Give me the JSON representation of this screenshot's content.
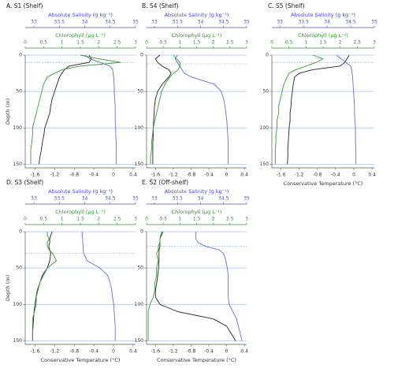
{
  "chart_data": [
    {
      "type": "line",
      "title": "A. S1 (Shelf)",
      "ylabel": "Depth (m)",
      "x2label": "Absolute Salinity (g kg⁻¹)",
      "x3label": "Chlorophyll (µg L⁻¹)",
      "depth": [
        0,
        5,
        10,
        15,
        20,
        25,
        30,
        40,
        50,
        60,
        70,
        80,
        90,
        100,
        110,
        120,
        130,
        140,
        150
      ],
      "ylim": [
        155,
        0
      ],
      "yticks": [
        0,
        50,
        100,
        150
      ],
      "grid": true,
      "mld": 10,
      "xlim": [
        -1.8,
        0.45
      ],
      "xticks": [
        -1.6,
        -1.2,
        -0.8,
        -0.4,
        0,
        0.4
      ],
      "x2lim": [
        32.83,
        35
      ],
      "x2ticks": [
        33,
        33.5,
        34,
        34.5,
        35
      ],
      "x3lim": [
        0,
        3
      ],
      "x3ticks": [
        0,
        0.5,
        1,
        1.5,
        2,
        2.5,
        3
      ],
      "series": [
        {
          "color": "#222222",
          "axis": "x",
          "values": [
            -0.5,
            -0.45,
            -0.5,
            -0.9,
            -1.0,
            -1.05,
            -1.1,
            -1.15,
            -1.2,
            -1.25,
            -1.28,
            -1.3,
            -1.35,
            -1.4,
            -1.42,
            -1.45,
            -1.47,
            -1.5,
            -1.52
          ]
        },
        {
          "color": "#6b6bd6",
          "axis": "x2",
          "values": [
            34.0,
            34.1,
            34.3,
            34.5,
            34.55,
            34.56,
            34.57,
            34.58,
            34.58,
            34.59,
            34.6,
            34.6,
            34.6,
            34.61,
            34.61,
            34.62,
            34.62,
            34.62,
            34.62
          ]
        },
        {
          "color": "#3a9a3a",
          "axis": "x3",
          "values": [
            1.5,
            2.0,
            2.6,
            1.5,
            1.0,
            0.8,
            0.6,
            0.5,
            0.45,
            0.4,
            0.35,
            0.3,
            0.25,
            0.2,
            0.2,
            0.18,
            0.15,
            0.15,
            0.15
          ]
        }
      ]
    },
    {
      "type": "line",
      "title": "B. S4 (Shelf)",
      "x2label": "Absolute Salinity (g kg⁻¹)",
      "x3label": "Chlorophyll (µg L⁻¹)",
      "depth": [
        0,
        5,
        10,
        15,
        20,
        25,
        30,
        40,
        50,
        60,
        70,
        80,
        90,
        100,
        110,
        120,
        130,
        140,
        150
      ],
      "ylim": [
        155,
        0
      ],
      "yticks": [
        0,
        50,
        100,
        150
      ],
      "grid": true,
      "mld": 12,
      "xlim": [
        -1.8,
        0.45
      ],
      "xticks": [
        -1.6,
        -1.2,
        -0.8,
        -0.4,
        0,
        0.4
      ],
      "x2lim": [
        32.83,
        35
      ],
      "x2ticks": [
        33,
        33.5,
        34,
        34.5,
        35
      ],
      "x3lim": [
        0,
        3
      ],
      "x3ticks": [
        0,
        0.5,
        1,
        1.5,
        2,
        2.5,
        3
      ],
      "series": [
        {
          "color": "#222222",
          "axis": "x",
          "values": [
            -1.5,
            -1.6,
            -1.55,
            -1.45,
            -1.3,
            -1.25,
            -1.3,
            -1.45,
            -1.55,
            -1.6,
            -1.62,
            -1.63,
            -1.64,
            -1.65,
            -1.65,
            -1.66,
            -1.66,
            -1.66,
            -1.66
          ]
        },
        {
          "color": "#6b6bd6",
          "axis": "x2",
          "values": [
            33.5,
            33.45,
            33.5,
            33.55,
            33.6,
            33.65,
            33.8,
            34.3,
            34.45,
            34.5,
            34.53,
            34.55,
            34.57,
            34.58,
            34.59,
            34.6,
            34.6,
            34.6,
            34.6
          ]
        },
        {
          "color": "#3a9a3a",
          "axis": "x3",
          "values": [
            0.8,
            0.9,
            1.0,
            1.0,
            0.95,
            0.8,
            0.7,
            0.55,
            0.45,
            0.4,
            0.35,
            0.3,
            0.25,
            0.2,
            0.18,
            0.15,
            0.15,
            0.12,
            0.12
          ]
        }
      ]
    },
    {
      "type": "line",
      "title": "C. S5 (Shelf)",
      "xlabel": "Conservative Temperature (°C)",
      "x2label": "Absolute Salinity (g kg⁻¹)",
      "x3label": "Chlorophyll (µg L⁻¹)",
      "depth": [
        0,
        5,
        10,
        15,
        20,
        25,
        30,
        40,
        50,
        60,
        70,
        80,
        90,
        100,
        110,
        120,
        130,
        140,
        150
      ],
      "ylim": [
        155,
        0
      ],
      "yticks": [
        0,
        50,
        100,
        150
      ],
      "grid": true,
      "mld": 10,
      "xlim": [
        -1.8,
        0.45
      ],
      "xticks": [
        -1.6,
        -1.2,
        -0.8,
        -0.4,
        0,
        0.4
      ],
      "x2lim": [
        32.83,
        35
      ],
      "x2ticks": [
        33,
        33.5,
        34,
        34.5,
        35
      ],
      "x3lim": [
        0,
        3
      ],
      "x3ticks": [
        0,
        0.5,
        1,
        1.5,
        2,
        2.5,
        3
      ],
      "series": [
        {
          "color": "#222222",
          "axis": "x",
          "values": [
            -0.1,
            -0.15,
            -0.2,
            -0.3,
            -0.9,
            -1.2,
            -1.3,
            -1.33,
            -1.35,
            -1.37,
            -1.38,
            -1.4,
            -1.4,
            -1.42,
            -1.43,
            -1.44,
            -1.45,
            -1.45,
            -1.46
          ]
        },
        {
          "color": "#6b6bd6",
          "axis": "x2",
          "values": [
            34.2,
            34.3,
            34.4,
            34.5,
            34.52,
            34.53,
            34.54,
            34.55,
            34.56,
            34.57,
            34.58,
            34.58,
            34.59,
            34.6,
            34.6,
            34.6,
            34.61,
            34.61,
            34.61
          ]
        },
        {
          "color": "#3a9a3a",
          "axis": "x3",
          "values": [
            1.2,
            1.5,
            1.3,
            1.0,
            0.7,
            0.5,
            0.45,
            0.35,
            0.3,
            0.25,
            0.2,
            0.2,
            0.15,
            0.15,
            0.12,
            0.12,
            0.1,
            0.1,
            0.1
          ]
        }
      ]
    },
    {
      "type": "line",
      "title": "D. S3 (Shelf)",
      "ylabel": "Depth (m)",
      "xlabel": "Conservative Temperature (°C)",
      "x2label": "Absolute Salinity (g kg⁻¹)",
      "x3label": "Chlorophyll (µg L⁻¹)",
      "depth": [
        0,
        5,
        10,
        15,
        20,
        25,
        30,
        40,
        50,
        60,
        70,
        80,
        90,
        100,
        110,
        120,
        130,
        140,
        150
      ],
      "ylim": [
        155,
        0
      ],
      "yticks": [
        0,
        50,
        100,
        150
      ],
      "grid": true,
      "mld": 30,
      "xlim": [
        -1.8,
        0.45
      ],
      "xticks": [
        -1.6,
        -1.2,
        -0.8,
        -0.4,
        0,
        0.4
      ],
      "x2lim": [
        32.83,
        35
      ],
      "x2ticks": [
        33,
        33.5,
        34,
        34.5,
        35
      ],
      "x3lim": [
        0,
        3
      ],
      "x3ticks": [
        0,
        0.5,
        1,
        1.5,
        2,
        2.5,
        3
      ],
      "series": [
        {
          "color": "#222222",
          "axis": "x",
          "values": [
            -1.25,
            -1.28,
            -1.3,
            -1.3,
            -1.32,
            -1.3,
            -1.28,
            -1.3,
            -1.35,
            -1.45,
            -1.5,
            -1.55,
            -1.58,
            -1.6,
            -1.62,
            -1.63,
            -1.64,
            -1.65,
            -1.65
          ]
        },
        {
          "color": "#6b6bd6",
          "axis": "x2",
          "values": [
            33.95,
            33.95,
            33.96,
            33.96,
            33.97,
            33.97,
            33.98,
            34.05,
            34.3,
            34.45,
            34.5,
            34.53,
            34.55,
            34.57,
            34.58,
            34.59,
            34.6,
            34.6,
            34.6
          ]
        },
        {
          "color": "#3a9a3a",
          "axis": "x3",
          "values": [
            0.6,
            0.6,
            0.65,
            0.6,
            0.6,
            0.65,
            0.75,
            0.85,
            0.6,
            0.5,
            0.4,
            0.35,
            0.3,
            0.3,
            0.25,
            0.2,
            0.2,
            0.2,
            0.2
          ]
        }
      ]
    },
    {
      "type": "line",
      "title": "E. S2 (Off-shelf)",
      "xlabel": "Conservative Temperature (°C)",
      "x2label": "Absolute Salinity (g kg⁻¹)",
      "x3label": "Chlorophyll (µg L⁻¹)",
      "depth": [
        0,
        5,
        10,
        15,
        20,
        25,
        30,
        40,
        50,
        60,
        70,
        80,
        90,
        100,
        110,
        120,
        130,
        140,
        150
      ],
      "ylim": [
        155,
        0
      ],
      "yticks": [
        0,
        50,
        100,
        150
      ],
      "grid": true,
      "mld": 20,
      "xlim": [
        -1.8,
        0.45
      ],
      "xticks": [
        -1.6,
        -1.2,
        -0.8,
        -0.4,
        0,
        0.4
      ],
      "x2lim": [
        32.83,
        35
      ],
      "x2ticks": [
        33,
        33.5,
        34,
        34.5,
        35
      ],
      "x3lim": [
        0,
        3
      ],
      "x3ticks": [
        0,
        0.5,
        1,
        1.5,
        2,
        2.5,
        3
      ],
      "series": [
        {
          "color": "#222222",
          "axis": "x",
          "values": [
            -1.45,
            -1.48,
            -1.5,
            -1.5,
            -1.5,
            -1.52,
            -1.52,
            -1.52,
            -1.53,
            -1.55,
            -1.57,
            -1.6,
            -1.6,
            -1.5,
            -1.1,
            -0.3,
            0.0,
            0.1,
            0.2
          ]
        },
        {
          "color": "#6b6bd6",
          "axis": "x2",
          "values": [
            33.9,
            33.9,
            33.9,
            33.95,
            34.1,
            34.4,
            34.5,
            34.55,
            34.58,
            34.6,
            34.6,
            34.6,
            34.6,
            34.62,
            34.7,
            34.78,
            34.82,
            34.86,
            34.9
          ]
        },
        {
          "color": "#3a9a3a",
          "axis": "x3",
          "values": [
            0.5,
            0.45,
            0.4,
            0.4,
            0.35,
            0.35,
            0.3,
            0.35,
            0.3,
            0.3,
            0.25,
            0.25,
            0.2,
            0.1,
            0.05,
            0.05,
            0.05,
            0.05,
            0.05
          ]
        }
      ]
    }
  ]
}
